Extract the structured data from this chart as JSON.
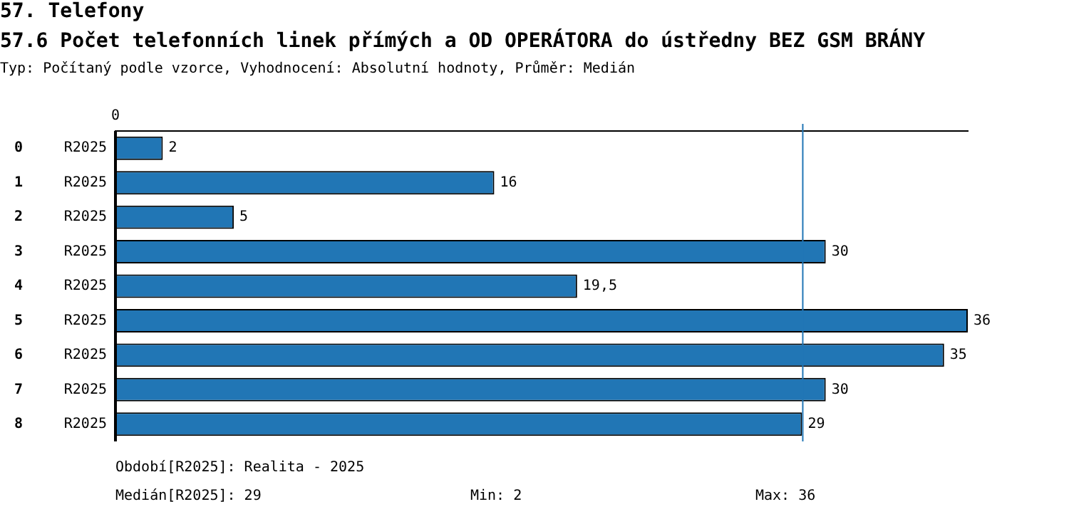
{
  "chart_data": {
    "type": "bar",
    "orientation": "horizontal",
    "title": "57. Telefony",
    "subtitle": "57.6 Počet telefonních linek přímých a OD OPERÁTORA do ústředny BEZ GSM BRÁNY",
    "categories": [
      "0",
      "1",
      "2",
      "3",
      "4",
      "5",
      "6",
      "7",
      "8"
    ],
    "series": [
      {
        "name": "R2025",
        "color": "#2176b5",
        "values": [
          2,
          16,
          5,
          30,
          19.5,
          36,
          35,
          30,
          29
        ],
        "value_labels": [
          "2",
          "16",
          "5",
          "30",
          "19,5",
          "36",
          "35",
          "30",
          "29"
        ]
      }
    ],
    "grid": false,
    "legend": false,
    "ref_lines": [
      {
        "axis": "x",
        "value": 29,
        "color": "#2176b5"
      }
    ],
    "annotations": [
      "0",
      "Typ: Počítaný podle vzorce, Vyhodnocení: Absolutní hodnoty, Průměr: Medián",
      "Období[R2025]: Realita - 2025",
      "Medián[R2025]: 29",
      "Min: 2",
      "Max: 36"
    ]
  }
}
